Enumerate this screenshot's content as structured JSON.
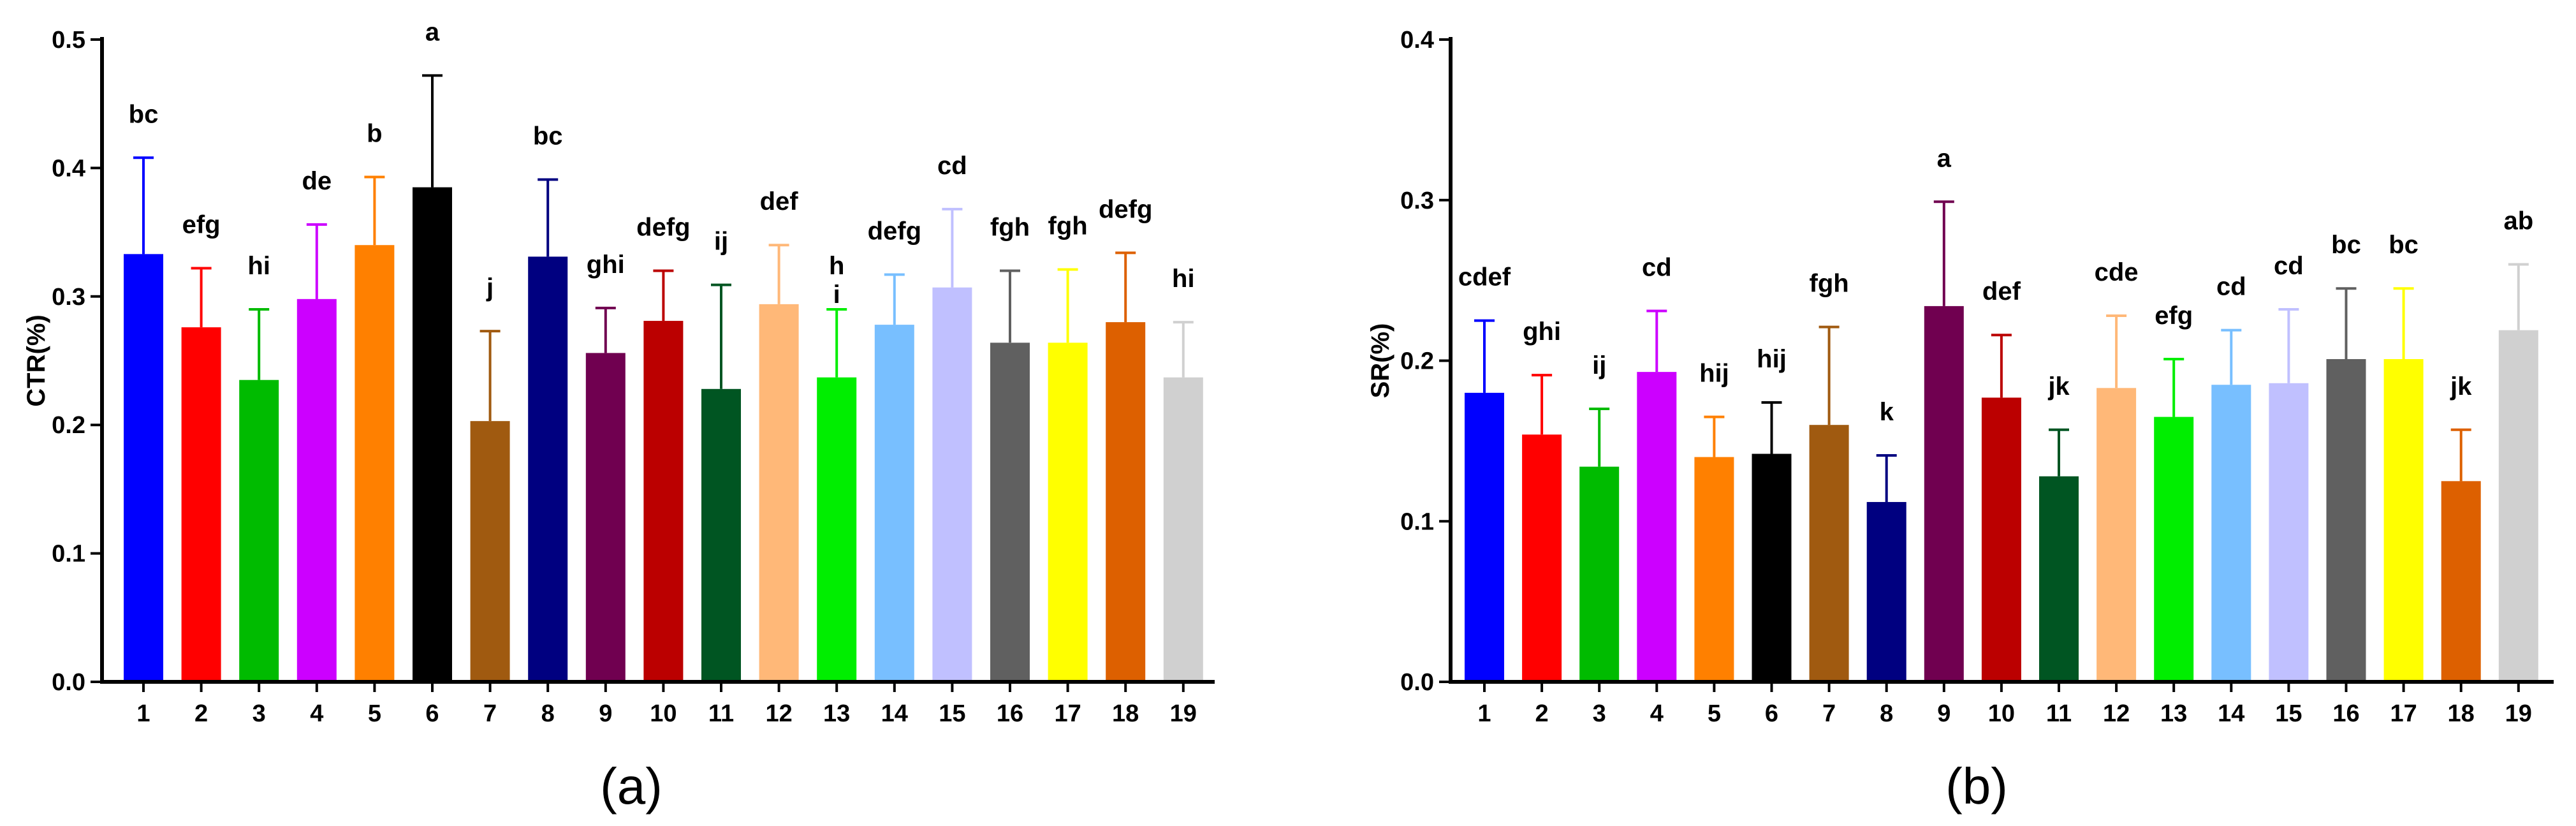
{
  "chart_data": [
    {
      "type": "bar",
      "panel_label": "(a)",
      "title": "",
      "xlabel": "",
      "ylabel": "CTR(%)",
      "ylim": [
        0,
        0.5
      ],
      "yticks": [
        "0.0",
        "0.1",
        "0.2",
        "0.3",
        "0.4",
        "0.5"
      ],
      "categories": [
        "1",
        "2",
        "3",
        "4",
        "5",
        "6",
        "7",
        "8",
        "9",
        "10",
        "11",
        "12",
        "13",
        "14",
        "15",
        "16",
        "17",
        "18",
        "19"
      ],
      "values": [
        0.333,
        0.276,
        0.235,
        0.298,
        0.34,
        0.385,
        0.203,
        0.331,
        0.256,
        0.281,
        0.228,
        0.294,
        0.237,
        0.278,
        0.307,
        0.264,
        0.264,
        0.28,
        0.237
      ],
      "errors": [
        0.075,
        0.046,
        0.055,
        0.058,
        0.053,
        0.087,
        0.07,
        0.06,
        0.035,
        0.039,
        0.081,
        0.046,
        0.053,
        0.039,
        0.061,
        0.056,
        0.057,
        0.054,
        0.043
      ],
      "significance": [
        "bc",
        "efg",
        "hi",
        "de",
        "b",
        "a",
        "j",
        "bc",
        "ghi",
        "defg",
        "ij",
        "def",
        "h\ni",
        "defg",
        "cd",
        "fgh",
        "fgh",
        "defg",
        "hi"
      ],
      "colors": [
        "#0000ff",
        "#ff0000",
        "#00bb00",
        "#cc00ff",
        "#ff8000",
        "#000000",
        "#a05a10",
        "#000080",
        "#700050",
        "#bb0000",
        "#005522",
        "#ffb878",
        "#00ee00",
        "#78bfff",
        "#c0c0ff",
        "#606060",
        "#ffff00",
        "#dd6000",
        "#d0d0d0"
      ]
    },
    {
      "type": "bar",
      "panel_label": "(b)",
      "title": "",
      "xlabel": "",
      "ylabel": "SR(%)",
      "ylim": [
        0,
        0.4
      ],
      "yticks": [
        "0.0",
        "0.1",
        "0.2",
        "0.3",
        "0.4"
      ],
      "categories": [
        "1",
        "2",
        "3",
        "4",
        "5",
        "6",
        "7",
        "8",
        "9",
        "10",
        "11",
        "12",
        "13",
        "14",
        "15",
        "16",
        "17",
        "18",
        "19"
      ],
      "values": [
        0.18,
        0.154,
        0.134,
        0.193,
        0.14,
        0.142,
        0.16,
        0.112,
        0.234,
        0.177,
        0.128,
        0.183,
        0.165,
        0.185,
        0.186,
        0.201,
        0.201,
        0.125,
        0.219
      ],
      "errors": [
        0.045,
        0.037,
        0.036,
        0.038,
        0.025,
        0.032,
        0.061,
        0.029,
        0.065,
        0.039,
        0.029,
        0.045,
        0.036,
        0.034,
        0.046,
        0.044,
        0.044,
        0.032,
        0.041
      ],
      "significance": [
        "cdef",
        "ghi",
        "ij",
        "cd",
        "hij",
        "hij",
        "fgh",
        "k",
        "a",
        "def",
        "jk",
        "cde",
        "efg",
        "cd",
        "cd",
        "bc",
        "bc",
        "jk",
        "ab"
      ],
      "colors": [
        "#0000ff",
        "#ff0000",
        "#00bb00",
        "#cc00ff",
        "#ff8000",
        "#000000",
        "#a05a10",
        "#000080",
        "#700050",
        "#bb0000",
        "#005522",
        "#ffb878",
        "#00ee00",
        "#78bfff",
        "#c0c0ff",
        "#606060",
        "#ffff00",
        "#dd6000",
        "#d0d0d0"
      ]
    }
  ]
}
